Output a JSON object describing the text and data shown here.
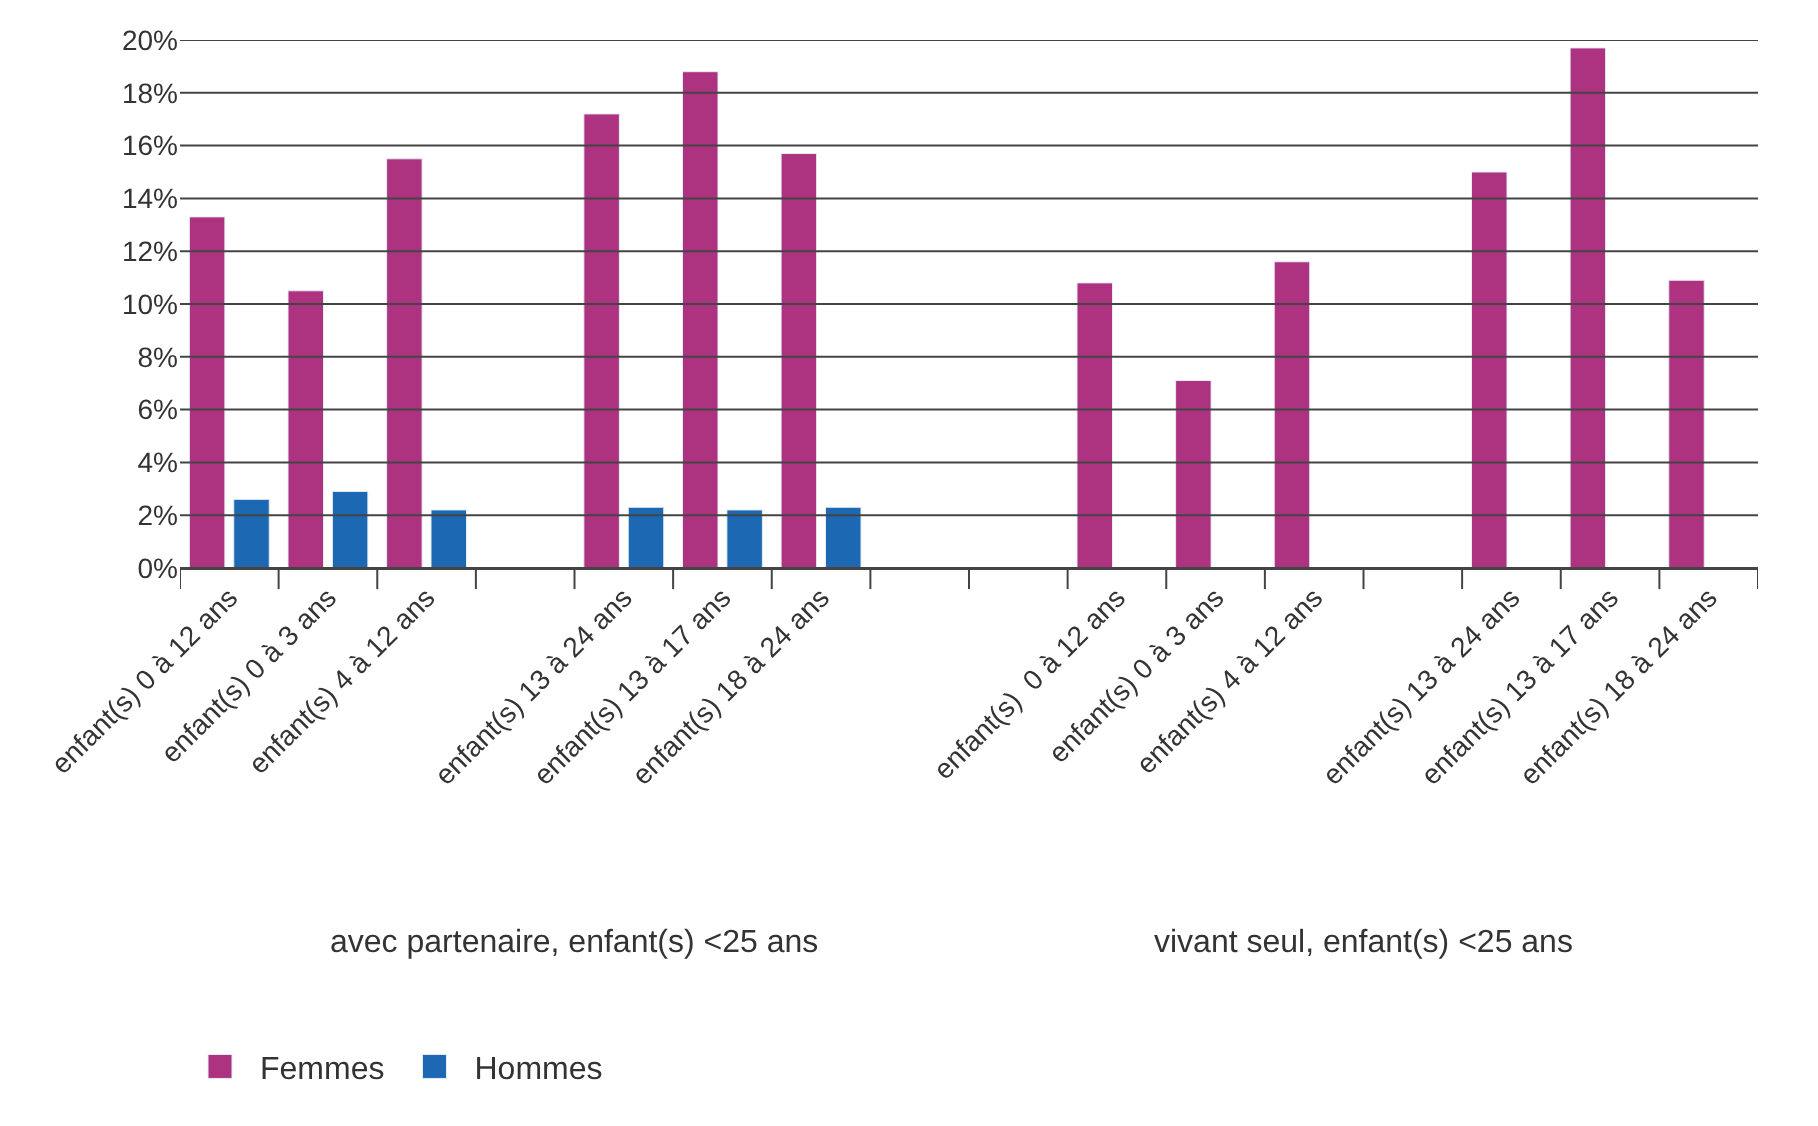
{
  "chart_data": {
    "type": "bar",
    "categories": [
      "enfant(s) 0 à 12 ans",
      "enfant(s) 0 à 3 ans",
      "enfant(s) 4 à 12 ans",
      null,
      "enfant(s) 13 à 24 ans",
      "enfant(s) 13 à 17 ans",
      "enfant(s) 18 à 24 ans",
      null,
      null,
      "enfant(s)  0 à 12 ans",
      "enfant(s) 0 à 3 ans",
      "enfant(s) 4 à 12 ans",
      null,
      "enfant(s) 13 à 24 ans",
      "enfant(s) 13 à 17 ans",
      "enfant(s) 18 à 24 ans"
    ],
    "series": [
      {
        "name": "Femmes",
        "color": "#ad3380",
        "values": [
          13.3,
          10.5,
          15.5,
          null,
          17.2,
          18.8,
          15.7,
          null,
          null,
          10.8,
          7.1,
          11.6,
          null,
          15.0,
          19.7,
          10.9
        ]
      },
      {
        "name": "Hommes",
        "color": "#1c68b3",
        "values": [
          2.6,
          2.9,
          2.2,
          null,
          2.3,
          2.2,
          2.3,
          null,
          null,
          null,
          null,
          null,
          null,
          null,
          null,
          null
        ]
      }
    ],
    "ylim": [
      0,
      20
    ],
    "yticks": [
      {
        "value": 0,
        "label": "0%"
      },
      {
        "value": 2,
        "label": "2%"
      },
      {
        "value": 4,
        "label": "4%"
      },
      {
        "value": 6,
        "label": "6%"
      },
      {
        "value": 8,
        "label": "8%"
      },
      {
        "value": 10,
        "label": "10%"
      },
      {
        "value": 12,
        "label": "12%"
      },
      {
        "value": 14,
        "label": "14%"
      },
      {
        "value": 16,
        "label": "16%"
      },
      {
        "value": 18,
        "label": "18%"
      },
      {
        "value": 20,
        "label": "20%"
      }
    ],
    "grid": "y",
    "legend": "bottom left",
    "annotations": [
      "avec partenaire, enfant(s) <25 ans",
      "vivant seul, enfant(s) <25 ans"
    ]
  }
}
